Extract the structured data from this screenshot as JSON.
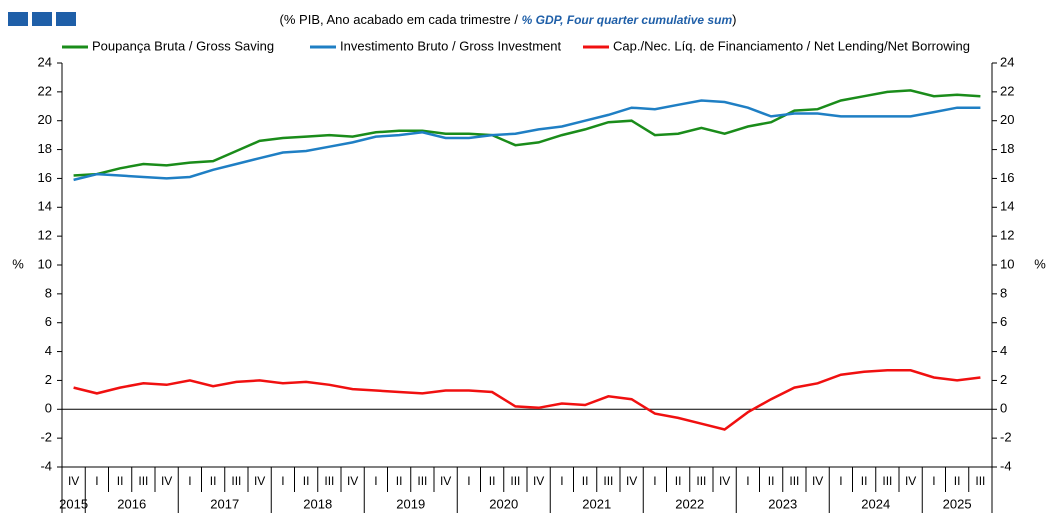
{
  "chart_data": {
    "type": "line",
    "subtitle_parts": [
      "(% PIB, Ano acabado em cada trimestre / ",
      "% GDP, Four quarter cumulative sum",
      ")"
    ],
    "ylabel": "%",
    "y2label": "%",
    "categories": [
      "IV",
      "I",
      "II",
      "III",
      "IV",
      "I",
      "II",
      "III",
      "IV",
      "I",
      "II",
      "III",
      "IV",
      "I",
      "II",
      "III",
      "IV",
      "I",
      "II",
      "III",
      "IV",
      "I",
      "II",
      "III",
      "IV",
      "I",
      "II",
      "III",
      "IV",
      "I",
      "II",
      "III",
      "IV",
      "I",
      "II",
      "III",
      "IV",
      "I",
      "II",
      "III"
    ],
    "years": [
      "2015",
      "2016",
      "2017",
      "2018",
      "2019",
      "2020",
      "2021",
      "2022",
      "2023",
      "2024",
      "2025"
    ],
    "ylim": [
      -4,
      24
    ],
    "yticks": [
      -4,
      -2,
      0,
      2,
      4,
      6,
      8,
      10,
      12,
      14,
      16,
      18,
      20,
      22,
      24
    ],
    "y2lim": [
      -4,
      24
    ],
    "y2ticks": [
      -4,
      -2,
      0,
      2,
      4,
      6,
      8,
      10,
      12,
      14,
      16,
      18,
      20,
      22,
      24
    ],
    "series": [
      {
        "name": "Poupança Bruta / Gross Saving",
        "color": "#1a8c1a",
        "values": [
          16.2,
          16.3,
          16.7,
          17.0,
          16.9,
          17.1,
          17.2,
          17.9,
          18.6,
          18.8,
          18.9,
          19.0,
          18.9,
          19.2,
          19.3,
          19.3,
          19.1,
          19.1,
          19.0,
          18.3,
          18.5,
          19.0,
          19.4,
          19.9,
          20.0,
          19.0,
          19.1,
          19.5,
          19.1,
          19.6,
          19.9,
          20.7,
          20.8,
          21.4,
          21.7,
          22.0,
          22.1,
          21.7,
          21.8,
          21.7
        ]
      },
      {
        "name": "Investimento Bruto / Gross Investment",
        "color": "#1f7fc4",
        "values": [
          15.9,
          16.3,
          16.2,
          16.1,
          16.0,
          16.1,
          16.6,
          17.0,
          17.4,
          17.8,
          17.9,
          18.2,
          18.5,
          18.9,
          19.0,
          19.2,
          18.8,
          18.8,
          19.0,
          19.1,
          19.4,
          19.6,
          20.0,
          20.4,
          20.9,
          20.8,
          21.1,
          21.4,
          21.3,
          20.9,
          20.3,
          20.5,
          20.5,
          20.3,
          20.3,
          20.3,
          20.3,
          20.6,
          20.9,
          20.9
        ]
      },
      {
        "name": "Cap./Nec. Líq. de Financiamento / Net Lending/Net Borrowing",
        "color": "#f01010",
        "values": [
          1.5,
          1.1,
          1.5,
          1.8,
          1.7,
          2.0,
          1.6,
          1.9,
          2.0,
          1.8,
          1.9,
          1.7,
          1.4,
          1.3,
          1.2,
          1.1,
          1.3,
          1.3,
          1.2,
          0.2,
          0.1,
          0.4,
          0.3,
          0.9,
          0.7,
          -0.3,
          -0.6,
          -1.0,
          -1.4,
          -0.2,
          0.7,
          1.5,
          1.8,
          2.4,
          2.6,
          2.7,
          2.7,
          2.2,
          2.0,
          2.2
        ]
      }
    ]
  }
}
